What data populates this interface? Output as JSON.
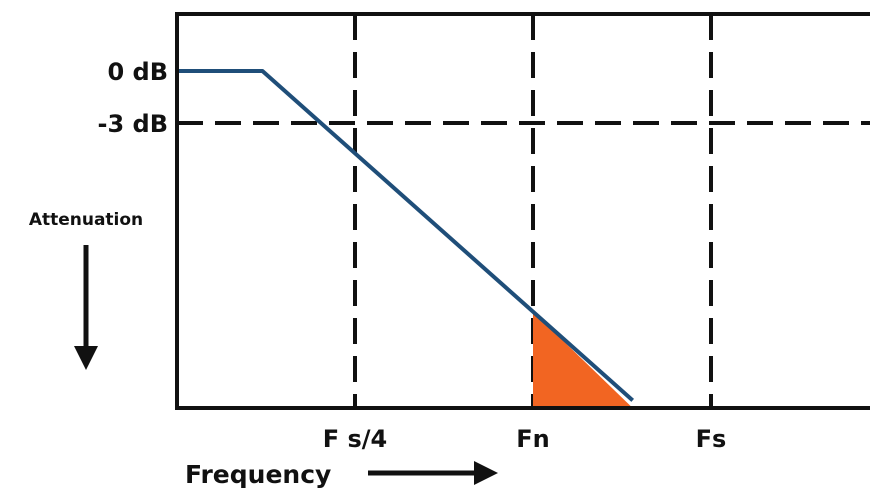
{
  "chart_data": {
    "type": "line",
    "title": "",
    "xlabel": "Frequency",
    "ylabel": "Attenuation",
    "x_ticks": [
      {
        "label": "F s/4",
        "x": 0.25
      },
      {
        "label": "Fn",
        "x": 0.5
      },
      {
        "label": "Fs",
        "x": 0.75
      }
    ],
    "y_ticks": [
      {
        "label": "0 dB",
        "y": 0
      },
      {
        "label": "-3 dB",
        "y": -3
      }
    ],
    "series": [
      {
        "line_color": "#1f4e79",
        "points": [
          {
            "x": 0.0,
            "y": 0
          },
          {
            "x": 0.12,
            "y": 0
          },
          {
            "x": 0.64,
            "y": -19
          }
        ]
      }
    ],
    "shaded_region": {
      "from_x": 0.5,
      "to_x": 0.64,
      "color": "#f26522"
    },
    "xlim": [
      0,
      1
    ],
    "ylim": [
      -19,
      0
    ],
    "grid": "dashed vertical lines at tick positions, dashed horizontal line at -3 dB"
  }
}
